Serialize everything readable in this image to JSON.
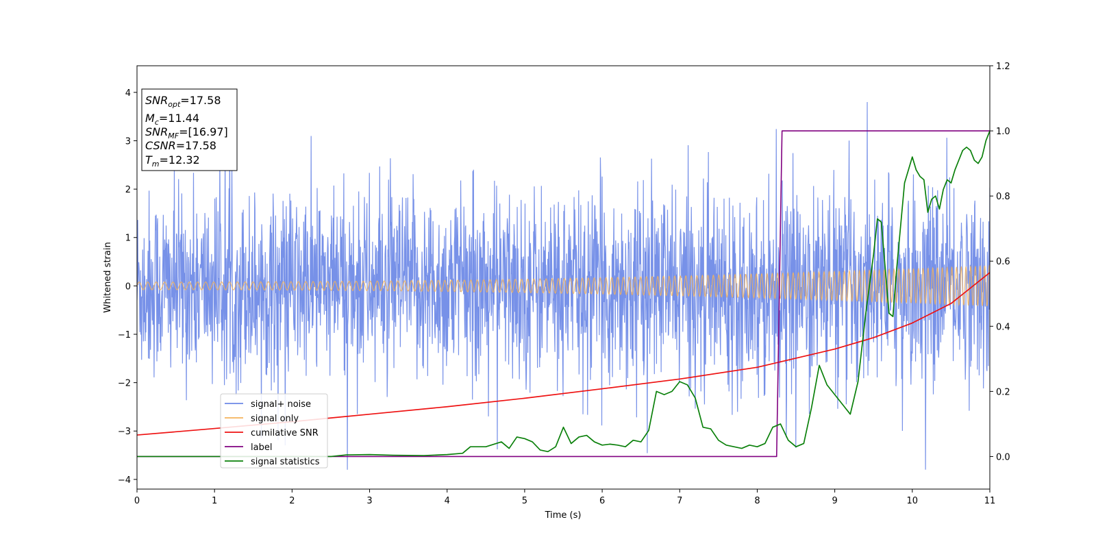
{
  "chart_data": {
    "type": "line",
    "xlabel": "Time (s)",
    "ylabel": "Whitened strain",
    "xlim": [
      0,
      11
    ],
    "ylim": [
      -4.2,
      4.55
    ],
    "y2lim": [
      -0.1,
      1.2
    ],
    "xticks": [
      "0",
      "1",
      "2",
      "3",
      "4",
      "5",
      "6",
      "7",
      "8",
      "9",
      "10",
      "11"
    ],
    "yticks": [
      "−4",
      "−3",
      "−2",
      "−1",
      "0",
      "1",
      "2",
      "3",
      "4"
    ],
    "y2ticks": [
      "0.0",
      "0.2",
      "0.4",
      "0.6",
      "0.8",
      "1.0",
      "1.2"
    ],
    "grid": false,
    "legend_position": "lower-left",
    "info_box": {
      "snr_opt": {
        "name": "SNR",
        "sub": "opt",
        "value": "=17.58"
      },
      "mc": {
        "name": "M",
        "sub": "c",
        "value": "=11.44"
      },
      "snr_mf": {
        "name": "SNR",
        "sub": "MF",
        "value": "=[16.97]"
      },
      "csnr": {
        "name": "CSNR",
        "value": "=17.58"
      },
      "tm": {
        "name": "T",
        "sub": "m",
        "value": "=12.32"
      }
    },
    "series": [
      {
        "name": "signal+ noise",
        "axis": "left",
        "color": "#6b88e6",
        "noise_envelope": [
          -2.3,
          2.3
        ],
        "noise_peaks": [
          -3.8,
          3.8
        ]
      },
      {
        "name": "signal only",
        "axis": "left",
        "color": "#f5b35a",
        "amplitude_start": 0.08,
        "amplitude_end": 0.42
      },
      {
        "name": "cumilative SNR",
        "axis": "right",
        "color": "#ee1111",
        "x": [
          0,
          1,
          2,
          3,
          4,
          5,
          6,
          7,
          8,
          9,
          9.5,
          10,
          10.5,
          11
        ],
        "values": [
          0.066,
          0.086,
          0.107,
          0.13,
          0.153,
          0.179,
          0.208,
          0.238,
          0.274,
          0.33,
          0.365,
          0.41,
          0.47,
          0.565
        ]
      },
      {
        "name": "label",
        "axis": "right",
        "color": "#800080",
        "x": [
          0,
          8.25,
          8.32,
          11
        ],
        "values": [
          0,
          0,
          1,
          1
        ]
      },
      {
        "name": "signal statistics",
        "axis": "right",
        "color": "#0a800a",
        "x": [
          0,
          2.5,
          2.7,
          3.0,
          3.3,
          3.7,
          4.0,
          4.2,
          4.3,
          4.5,
          4.7,
          4.8,
          4.9,
          5.0,
          5.1,
          5.2,
          5.3,
          5.4,
          5.5,
          5.6,
          5.7,
          5.8,
          5.9,
          6.0,
          6.1,
          6.2,
          6.3,
          6.4,
          6.5,
          6.6,
          6.7,
          6.8,
          6.9,
          7.0,
          7.1,
          7.2,
          7.3,
          7.4,
          7.5,
          7.6,
          7.7,
          7.8,
          7.9,
          8.0,
          8.1,
          8.2,
          8.3,
          8.4,
          8.5,
          8.6,
          8.7,
          8.8,
          8.9,
          9.0,
          9.1,
          9.2,
          9.3,
          9.4,
          9.5,
          9.55,
          9.6,
          9.7,
          9.75,
          9.8,
          9.9,
          10.0,
          10.05,
          10.1,
          10.15,
          10.2,
          10.25,
          10.3,
          10.35,
          10.4,
          10.45,
          10.5,
          10.55,
          10.6,
          10.65,
          10.7,
          10.75,
          10.8,
          10.85,
          10.9,
          10.95,
          11.0
        ],
        "values": [
          0,
          0.0,
          0.005,
          0.006,
          0.004,
          0.003,
          0.006,
          0.01,
          0.03,
          0.03,
          0.045,
          0.025,
          0.06,
          0.055,
          0.045,
          0.02,
          0.015,
          0.03,
          0.09,
          0.04,
          0.06,
          0.065,
          0.045,
          0.035,
          0.038,
          0.035,
          0.03,
          0.05,
          0.045,
          0.08,
          0.2,
          0.19,
          0.2,
          0.23,
          0.22,
          0.18,
          0.09,
          0.085,
          0.05,
          0.035,
          0.03,
          0.025,
          0.035,
          0.03,
          0.04,
          0.09,
          0.1,
          0.05,
          0.03,
          0.04,
          0.15,
          0.28,
          0.22,
          0.19,
          0.16,
          0.13,
          0.23,
          0.44,
          0.62,
          0.73,
          0.72,
          0.44,
          0.43,
          0.58,
          0.84,
          0.92,
          0.88,
          0.86,
          0.85,
          0.75,
          0.79,
          0.8,
          0.76,
          0.82,
          0.85,
          0.84,
          0.88,
          0.91,
          0.94,
          0.95,
          0.94,
          0.91,
          0.9,
          0.92,
          0.97,
          1.0
        ]
      }
    ]
  }
}
